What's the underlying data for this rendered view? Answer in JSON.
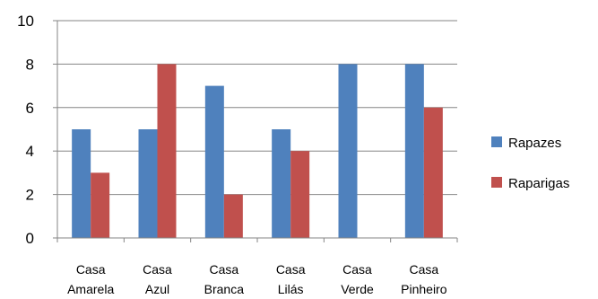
{
  "chart_data": {
    "type": "bar",
    "categories": [
      [
        "Casa",
        "Amarela"
      ],
      [
        "Casa",
        "Azul"
      ],
      [
        "Casa",
        "Branca"
      ],
      [
        "Casa",
        "Lilás"
      ],
      [
        "Casa",
        "Verde"
      ],
      [
        "Casa",
        "Pinheiro"
      ]
    ],
    "series": [
      {
        "name": "Rapazes",
        "color": "#4F81BD",
        "values": [
          5,
          5,
          7,
          5,
          8,
          8
        ]
      },
      {
        "name": "Raparigas",
        "color": "#C0504D",
        "values": [
          3,
          8,
          2,
          4,
          0,
          6
        ]
      }
    ],
    "ylim": [
      0,
      10
    ],
    "yticks": [
      "0",
      "2",
      "4",
      "6",
      "8",
      "10"
    ],
    "grid": true,
    "legend_position": "right"
  }
}
